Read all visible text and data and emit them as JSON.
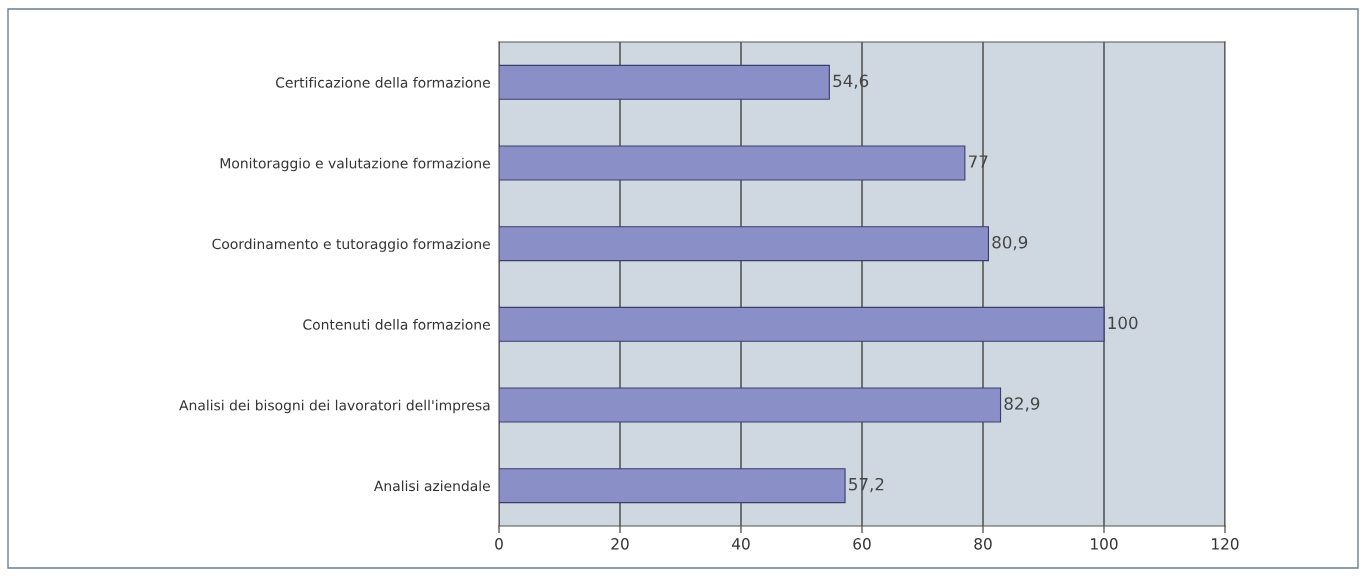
{
  "chart_data": {
    "type": "bar",
    "orientation": "horizontal",
    "categories": [
      "Certificazione della formazione",
      "Monitoraggio e valutazione formazione",
      "Coordinamento e tutoraggio formazione",
      "Contenuti della formazione",
      "Analisi dei bisogni dei lavoratori dell'impresa",
      "Analisi aziendale"
    ],
    "values": [
      54.6,
      77,
      80.9,
      100,
      82.9,
      57.2
    ],
    "value_labels": [
      "54,6",
      "77",
      "80,9",
      "100",
      "82,9",
      "57,2"
    ],
    "color": "#8b8fc8",
    "xlim": [
      0,
      120
    ],
    "xticks": [
      0,
      20,
      40,
      60,
      80,
      100,
      120
    ],
    "grid": "x",
    "legend": false
  }
}
